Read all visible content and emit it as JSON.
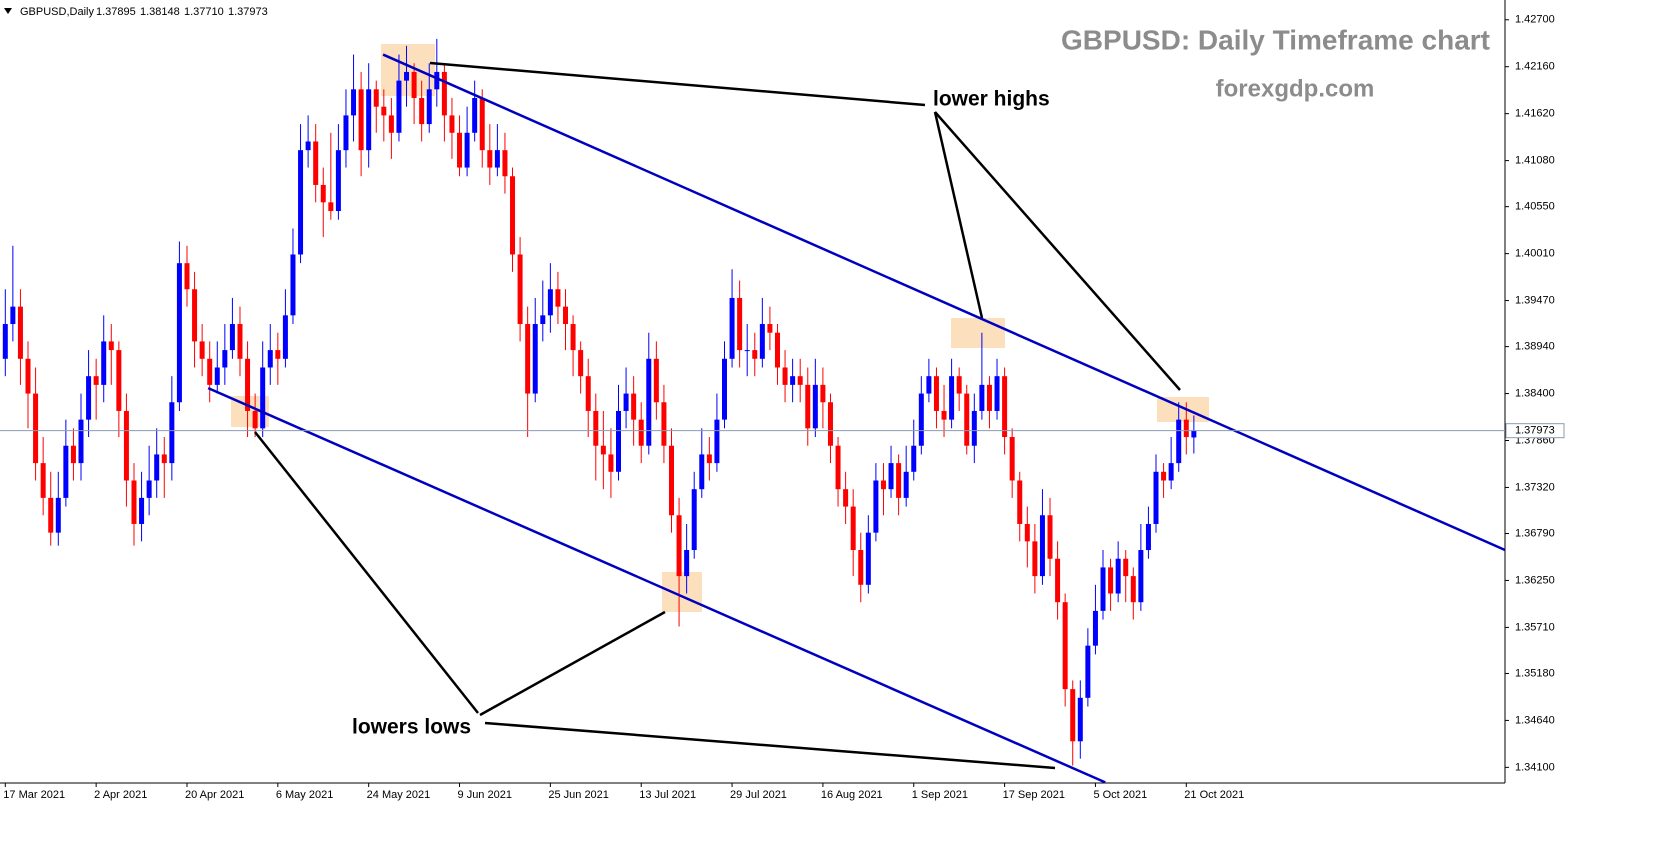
{
  "chart_data": {
    "type": "candlestick",
    "symbol": "GBPUSD,Daily",
    "title": "GBPUSD: Daily Timeframe chart",
    "subtitle": "forexgdp.com",
    "annotations": [
      "lower highs",
      "lowers lows"
    ],
    "up_color": "#0000ff",
    "down_color": "#ff0000",
    "last_bar_labels": [
      "1.37895",
      "1.38148",
      "1.37710",
      "1.37973"
    ],
    "xlim": [
      -0.7,
      198.1
    ],
    "xticks": [
      {
        "value": 0,
        "label": "17 Mar 2021"
      },
      {
        "value": 12,
        "label": "2 Apr 2021"
      },
      {
        "value": 24,
        "label": "20 Apr 2021"
      },
      {
        "value": 36,
        "label": "6 May 2021"
      },
      {
        "value": 48,
        "label": "24 May 2021"
      },
      {
        "value": 60,
        "label": "9 Jun 2021"
      },
      {
        "value": 72,
        "label": "25 Jun 2021"
      },
      {
        "value": 84,
        "label": "13 Jul 2021"
      },
      {
        "value": 96,
        "label": "29 Jul 2021"
      },
      {
        "value": 108,
        "label": "16 Aug 2021"
      },
      {
        "value": 120,
        "label": "1 Sep 2021"
      },
      {
        "value": 132,
        "label": "17 Sep 2021"
      },
      {
        "value": 144,
        "label": "5 Oct 2021"
      },
      {
        "value": 156,
        "label": "21 Oct 2021"
      }
    ],
    "ylim": [
      1.3392,
      1.4287
    ],
    "yticks": [
      {
        "value": 1.427,
        "label": "1.42700"
      },
      {
        "value": 1.4216,
        "label": "1.42160"
      },
      {
        "value": 1.4162,
        "label": "1.41620"
      },
      {
        "value": 1.4108,
        "label": "1.41080"
      },
      {
        "value": 1.4055,
        "label": "1.40550"
      },
      {
        "value": 1.4001,
        "label": "1.40010"
      },
      {
        "value": 1.3947,
        "label": "1.39470"
      },
      {
        "value": 1.3894,
        "label": "1.38940"
      },
      {
        "value": 1.384,
        "label": "1.38400"
      },
      {
        "value": 1.3786,
        "label": "1.37860"
      },
      {
        "value": 1.3732,
        "label": "1.37320"
      },
      {
        "value": 1.3679,
        "label": "1.36790"
      },
      {
        "value": 1.3625,
        "label": "1.36250"
      },
      {
        "value": 1.3571,
        "label": "1.35710"
      },
      {
        "value": 1.3518,
        "label": "1.35180"
      },
      {
        "value": 1.3464,
        "label": "1.34640"
      },
      {
        "value": 1.341,
        "label": "1.34100"
      }
    ],
    "trendlines": [
      {
        "color": "#0000c0",
        "points": [
          [
            49.9,
            1.423
          ],
          [
            198.1,
            1.366
          ]
        ]
      },
      {
        "color": "#0000c0",
        "points": [
          [
            26.8,
            1.38463
          ],
          [
            145.3,
            1.33927
          ]
        ]
      }
    ],
    "ohlc": [
      [
        1.388,
        1.396,
        1.386,
        1.392
      ],
      [
        1.392,
        1.401,
        1.39,
        1.394
      ],
      [
        1.394,
        1.396,
        1.385,
        1.388
      ],
      [
        1.388,
        1.39,
        1.38,
        1.384
      ],
      [
        1.384,
        1.387,
        1.374,
        1.376
      ],
      [
        1.376,
        1.379,
        1.37,
        1.372
      ],
      [
        1.372,
        1.375,
        1.3665,
        1.368
      ],
      [
        1.368,
        1.375,
        1.3665,
        1.372
      ],
      [
        1.372,
        1.381,
        1.371,
        1.378
      ],
      [
        1.378,
        1.38,
        1.374,
        1.376
      ],
      [
        1.376,
        1.384,
        1.374,
        1.381
      ],
      [
        1.381,
        1.389,
        1.379,
        1.386
      ],
      [
        1.386,
        1.388,
        1.381,
        1.385
      ],
      [
        1.385,
        1.393,
        1.383,
        1.39
      ],
      [
        1.39,
        1.392,
        1.385,
        1.389
      ],
      [
        1.389,
        1.39,
        1.379,
        1.382
      ],
      [
        1.382,
        1.384,
        1.371,
        1.374
      ],
      [
        1.374,
        1.376,
        1.3665,
        1.369
      ],
      [
        1.369,
        1.375,
        1.367,
        1.372
      ],
      [
        1.372,
        1.378,
        1.37,
        1.374
      ],
      [
        1.374,
        1.38,
        1.372,
        1.377
      ],
      [
        1.377,
        1.379,
        1.372,
        1.376
      ],
      [
        1.376,
        1.386,
        1.374,
        1.383
      ],
      [
        1.383,
        1.4015,
        1.382,
        1.399
      ],
      [
        1.399,
        1.401,
        1.394,
        1.396
      ],
      [
        1.396,
        1.398,
        1.387,
        1.39
      ],
      [
        1.39,
        1.392,
        1.386,
        1.388
      ],
      [
        1.388,
        1.39,
        1.383,
        1.385
      ],
      [
        1.385,
        1.39,
        1.384,
        1.387
      ],
      [
        1.387,
        1.392,
        1.385,
        1.389
      ],
      [
        1.389,
        1.395,
        1.388,
        1.392
      ],
      [
        1.392,
        1.394,
        1.386,
        1.388
      ],
      [
        1.388,
        1.39,
        1.379,
        1.382
      ],
      [
        1.382,
        1.384,
        1.379,
        1.38
      ],
      [
        1.38,
        1.39,
        1.379,
        1.387
      ],
      [
        1.387,
        1.392,
        1.385,
        1.389
      ],
      [
        1.389,
        1.391,
        1.385,
        1.388
      ],
      [
        1.388,
        1.396,
        1.387,
        1.393
      ],
      [
        1.393,
        1.403,
        1.392,
        1.4
      ],
      [
        1.4,
        1.415,
        1.399,
        1.412
      ],
      [
        1.412,
        1.416,
        1.41,
        1.413
      ],
      [
        1.413,
        1.415,
        1.406,
        1.408
      ],
      [
        1.408,
        1.41,
        1.402,
        1.406
      ],
      [
        1.406,
        1.414,
        1.404,
        1.405
      ],
      [
        1.405,
        1.415,
        1.404,
        1.412
      ],
      [
        1.412,
        1.419,
        1.41,
        1.416
      ],
      [
        1.416,
        1.423,
        1.413,
        1.419
      ],
      [
        1.419,
        1.421,
        1.409,
        1.412
      ],
      [
        1.412,
        1.422,
        1.41,
        1.419
      ],
      [
        1.419,
        1.42,
        1.414,
        1.417
      ],
      [
        1.417,
        1.419,
        1.413,
        1.416
      ],
      [
        1.416,
        1.418,
        1.411,
        1.414
      ],
      [
        1.414,
        1.423,
        1.413,
        1.42
      ],
      [
        1.42,
        1.424,
        1.417,
        1.421
      ],
      [
        1.421,
        1.422,
        1.415,
        1.418
      ],
      [
        1.418,
        1.42,
        1.413,
        1.415
      ],
      [
        1.415,
        1.422,
        1.414,
        1.419
      ],
      [
        1.419,
        1.4248,
        1.417,
        1.421
      ],
      [
        1.421,
        1.422,
        1.413,
        1.416
      ],
      [
        1.416,
        1.418,
        1.411,
        1.414
      ],
      [
        1.414,
        1.416,
        1.409,
        1.41
      ],
      [
        1.41,
        1.417,
        1.409,
        1.414
      ],
      [
        1.414,
        1.42,
        1.413,
        1.418
      ],
      [
        1.418,
        1.419,
        1.41,
        1.412
      ],
      [
        1.412,
        1.415,
        1.408,
        1.41
      ],
      [
        1.41,
        1.415,
        1.409,
        1.412
      ],
      [
        1.412,
        1.414,
        1.407,
        1.409
      ],
      [
        1.409,
        1.41,
        1.398,
        1.4
      ],
      [
        1.4,
        1.402,
        1.39,
        1.392
      ],
      [
        1.392,
        1.394,
        1.379,
        1.384
      ],
      [
        1.384,
        1.395,
        1.383,
        1.392
      ],
      [
        1.392,
        1.397,
        1.39,
        1.393
      ],
      [
        1.393,
        1.399,
        1.391,
        1.396
      ],
      [
        1.396,
        1.398,
        1.392,
        1.394
      ],
      [
        1.394,
        1.396,
        1.389,
        1.392
      ],
      [
        1.392,
        1.393,
        1.386,
        1.389
      ],
      [
        1.389,
        1.39,
        1.384,
        1.386
      ],
      [
        1.386,
        1.388,
        1.379,
        1.382
      ],
      [
        1.382,
        1.384,
        1.374,
        1.378
      ],
      [
        1.378,
        1.382,
        1.373,
        1.377
      ],
      [
        1.377,
        1.38,
        1.372,
        1.375
      ],
      [
        1.375,
        1.385,
        1.374,
        1.382
      ],
      [
        1.382,
        1.387,
        1.38,
        1.384
      ],
      [
        1.384,
        1.386,
        1.378,
        1.381
      ],
      [
        1.381,
        1.383,
        1.376,
        1.378
      ],
      [
        1.378,
        1.391,
        1.377,
        1.388
      ],
      [
        1.388,
        1.39,
        1.381,
        1.383
      ],
      [
        1.383,
        1.385,
        1.376,
        1.378
      ],
      [
        1.378,
        1.38,
        1.368,
        1.37
      ],
      [
        1.37,
        1.372,
        1.3572,
        1.363
      ],
      [
        1.363,
        1.369,
        1.361,
        1.366
      ],
      [
        1.366,
        1.375,
        1.365,
        1.373
      ],
      [
        1.373,
        1.38,
        1.372,
        1.377
      ],
      [
        1.377,
        1.379,
        1.374,
        1.376
      ],
      [
        1.376,
        1.384,
        1.375,
        1.381
      ],
      [
        1.381,
        1.39,
        1.38,
        1.388
      ],
      [
        1.388,
        1.3983,
        1.387,
        1.395
      ],
      [
        1.395,
        1.397,
        1.387,
        1.389
      ],
      [
        1.389,
        1.392,
        1.386,
        1.389
      ],
      [
        1.389,
        1.391,
        1.386,
        1.388
      ],
      [
        1.388,
        1.395,
        1.387,
        1.392
      ],
      [
        1.392,
        1.394,
        1.389,
        1.391
      ],
      [
        1.391,
        1.392,
        1.385,
        1.387
      ],
      [
        1.387,
        1.389,
        1.383,
        1.385
      ],
      [
        1.385,
        1.388,
        1.383,
        1.386
      ],
      [
        1.386,
        1.388,
        1.383,
        1.385
      ],
      [
        1.385,
        1.387,
        1.378,
        1.38
      ],
      [
        1.38,
        1.388,
        1.379,
        1.385
      ],
      [
        1.385,
        1.387,
        1.38,
        1.383
      ],
      [
        1.383,
        1.384,
        1.376,
        1.378
      ],
      [
        1.378,
        1.379,
        1.371,
        1.373
      ],
      [
        1.373,
        1.375,
        1.369,
        1.371
      ],
      [
        1.371,
        1.373,
        1.363,
        1.366
      ],
      [
        1.366,
        1.368,
        1.36,
        1.362
      ],
      [
        1.362,
        1.37,
        1.361,
        1.368
      ],
      [
        1.368,
        1.376,
        1.367,
        1.374
      ],
      [
        1.374,
        1.376,
        1.37,
        1.373
      ],
      [
        1.373,
        1.378,
        1.372,
        1.376
      ],
      [
        1.376,
        1.377,
        1.37,
        1.372
      ],
      [
        1.372,
        1.378,
        1.371,
        1.375
      ],
      [
        1.375,
        1.381,
        1.374,
        1.378
      ],
      [
        1.378,
        1.386,
        1.377,
        1.384
      ],
      [
        1.384,
        1.388,
        1.383,
        1.386
      ],
      [
        1.386,
        1.387,
        1.38,
        1.382
      ],
      [
        1.382,
        1.385,
        1.379,
        1.381
      ],
      [
        1.381,
        1.388,
        1.38,
        1.386
      ],
      [
        1.386,
        1.387,
        1.382,
        1.384
      ],
      [
        1.384,
        1.385,
        1.377,
        1.378
      ],
      [
        1.378,
        1.384,
        1.376,
        1.382
      ],
      [
        1.382,
        1.391,
        1.381,
        1.385
      ],
      [
        1.385,
        1.386,
        1.38,
        1.382
      ],
      [
        1.382,
        1.388,
        1.381,
        1.386
      ],
      [
        1.386,
        1.387,
        1.377,
        1.379
      ],
      [
        1.379,
        1.38,
        1.372,
        1.374
      ],
      [
        1.374,
        1.375,
        1.367,
        1.369
      ],
      [
        1.369,
        1.371,
        1.364,
        1.367
      ],
      [
        1.367,
        1.369,
        1.361,
        1.363
      ],
      [
        1.363,
        1.373,
        1.362,
        1.37
      ],
      [
        1.37,
        1.372,
        1.363,
        1.365
      ],
      [
        1.365,
        1.367,
        1.358,
        1.36
      ],
      [
        1.36,
        1.361,
        1.348,
        1.35
      ],
      [
        1.35,
        1.351,
        1.3412,
        1.344
      ],
      [
        1.344,
        1.351,
        1.342,
        1.349
      ],
      [
        1.349,
        1.357,
        1.348,
        1.355
      ],
      [
        1.355,
        1.362,
        1.354,
        1.359
      ],
      [
        1.359,
        1.366,
        1.358,
        1.364
      ],
      [
        1.364,
        1.365,
        1.359,
        1.361
      ],
      [
        1.361,
        1.367,
        1.36,
        1.365
      ],
      [
        1.365,
        1.366,
        1.36,
        1.363
      ],
      [
        1.363,
        1.364,
        1.358,
        1.36
      ],
      [
        1.36,
        1.369,
        1.359,
        1.366
      ],
      [
        1.366,
        1.371,
        1.365,
        1.369
      ],
      [
        1.369,
        1.377,
        1.368,
        1.375
      ],
      [
        1.375,
        1.376,
        1.372,
        1.374
      ],
      [
        1.374,
        1.379,
        1.373,
        1.376
      ],
      [
        1.376,
        1.383,
        1.375,
        1.381
      ],
      [
        1.381,
        1.383,
        1.377,
        1.379
      ],
      [
        1.37895,
        1.38148,
        1.3771,
        1.37973
      ]
    ]
  }
}
